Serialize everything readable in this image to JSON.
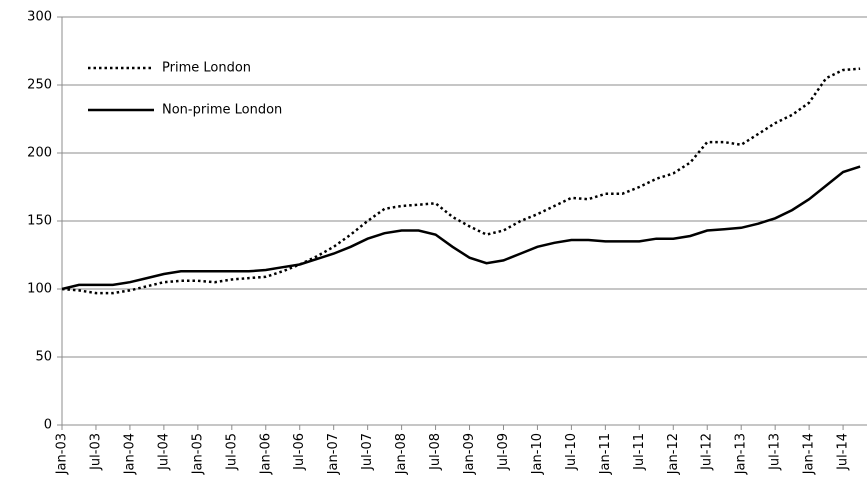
{
  "chart_data": {
    "type": "line",
    "categories": [
      "Jan-03",
      null,
      "Jul-03",
      null,
      "Jan-04",
      null,
      "Jul-04",
      null,
      "Jan-05",
      null,
      "Jul-05",
      null,
      "Jan-06",
      null,
      "Jul-06",
      null,
      "Jan-07",
      null,
      "Jul-07",
      null,
      "Jan-08",
      null,
      "Jul-08",
      null,
      "Jan-09",
      null,
      "Jul-09",
      null,
      "Jan-10",
      null,
      "Jul-10",
      null,
      "Jan-11",
      null,
      "Jul-11",
      null,
      "Jan-12",
      null,
      "Jul-12",
      null,
      "Jan-13",
      null,
      "Jul-13",
      null,
      "Jan-14",
      null,
      "Jul-14",
      null
    ],
    "series": [
      {
        "name": "Prime London",
        "color": "#000000",
        "dash": "dotted",
        "values": [
          100,
          99,
          97,
          97,
          99,
          102,
          105,
          106,
          106,
          105,
          107,
          108,
          109,
          113,
          118,
          124,
          131,
          140,
          150,
          159,
          161,
          162,
          163,
          153,
          146,
          140,
          143,
          150,
          155,
          161,
          167,
          166,
          170,
          170,
          175,
          181,
          185,
          193,
          208,
          208,
          206,
          214,
          222,
          228,
          237,
          255,
          261,
          262
        ]
      },
      {
        "name": "Non-prime London",
        "color": "#000000",
        "dash": "solid",
        "values": [
          100,
          103,
          103,
          103,
          105,
          108,
          111,
          113,
          113,
          113,
          113,
          113,
          114,
          116,
          118,
          122,
          126,
          131,
          137,
          141,
          143,
          143,
          140,
          131,
          123,
          119,
          121,
          126,
          131,
          134,
          136,
          136,
          135,
          135,
          135,
          137,
          137,
          139,
          143,
          144,
          145,
          148,
          152,
          158,
          166,
          176,
          186,
          190
        ]
      }
    ],
    "ylim": [
      0,
      300
    ],
    "yticks": [
      0,
      50,
      100,
      150,
      200,
      250,
      300
    ],
    "grid": true,
    "legend": "top-left"
  }
}
